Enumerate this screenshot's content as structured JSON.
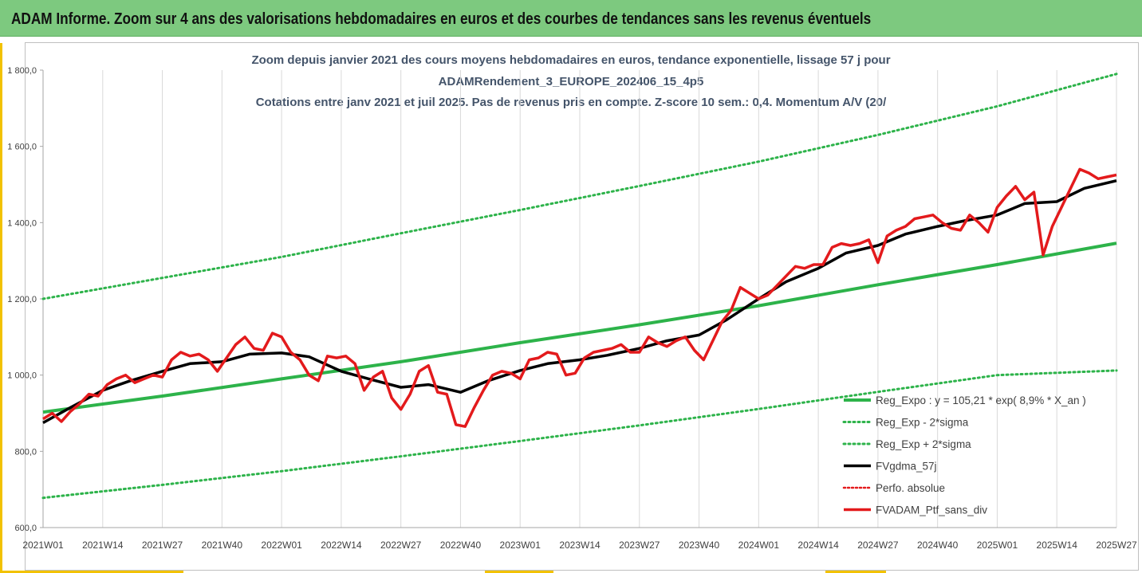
{
  "banner": {
    "title": "ADAM Informe. Zoom sur 4 ans des valorisations hebdomadaires en euros et des courbes de tendances sans les revenus éventuels"
  },
  "colors": {
    "banner_bg": "#7dc97f",
    "reg_expo": "#2db34a",
    "sigma_bands": "#2db34a",
    "moving_avg": "#000000",
    "perf_absolue": "#e31a1c",
    "portfolio": "#e31a1c"
  },
  "chart_data": {
    "type": "line",
    "title_lines": [
      "Zoom depuis janvier 2021 des cours moyens hebdomadaires  en euros, tendance exponentielle, lissage 57 j pour",
      "ADAMRendement_3_EUROPE_202406_15_4p5",
      "Cotations entre janv 2021 et juil 2025. Pas de revenus pris en compte. Z-score 10 sem.: 0,4. Momentum A/V (20/"
    ],
    "x_tick_labels": [
      "2021W01",
      "2021W14",
      "2021W27",
      "2021W40",
      "2022W01",
      "2022W14",
      "2022W27",
      "2022W40",
      "2023W01",
      "2023W14",
      "2023W27",
      "2023W40",
      "2024W01",
      "2024W14",
      "2024W27",
      "2024W40",
      "2025W01",
      "2025W14",
      "2025W27"
    ],
    "x_range": [
      "2021W01",
      "2025W27"
    ],
    "y_tick_labels": [
      "600,0",
      "800,0",
      "1 000,0",
      "1 200,0",
      "1 400,0",
      "1 600,0",
      "1 800,0"
    ],
    "ylim": [
      600,
      1800
    ],
    "grid": "vertical",
    "legend_position": "bottom-right",
    "series": [
      {
        "name": "Reg_Expo : y = 105,21 * exp( 8,9% *  X_an )",
        "style": "solid",
        "x": [
          "2021W01",
          "2021W27",
          "2022W01",
          "2022W27",
          "2023W01",
          "2023W27",
          "2024W01",
          "2024W27",
          "2025W01",
          "2025W27"
        ],
        "values": [
          903,
          945,
          990,
          1035,
          1085,
          1132,
          1182,
          1237,
          1290,
          1346
        ]
      },
      {
        "name": "Reg_Exp - 2*sigma",
        "style": "dotted",
        "x": [
          "2021W01",
          "2021W27",
          "2022W01",
          "2022W27",
          "2023W01",
          "2023W27",
          "2024W01",
          "2024W27",
          "2025W01",
          "2025W27"
        ],
        "values": [
          678,
          712,
          748,
          787,
          827,
          868,
          911,
          956,
          1000,
          1012
        ]
      },
      {
        "name": "Reg_Exp + 2*sigma",
        "style": "dotted",
        "x": [
          "2021W01",
          "2021W27",
          "2022W01",
          "2022W27",
          "2023W01",
          "2023W27",
          "2024W01",
          "2024W27",
          "2025W01",
          "2025W27"
        ],
        "values": [
          1200,
          1255,
          1310,
          1372,
          1433,
          1496,
          1560,
          1630,
          1705,
          1790
        ]
      },
      {
        "name": "FVgdma_57j",
        "style": "solid",
        "x": [
          "2021W01",
          "2021W07",
          "2021W14",
          "2021W20",
          "2021W27",
          "2021W33",
          "2021W40",
          "2021W46",
          "2022W01",
          "2022W07",
          "2022W14",
          "2022W20",
          "2022W27",
          "2022W33",
          "2022W40",
          "2022W46",
          "2023W01",
          "2023W07",
          "2023W14",
          "2023W20",
          "2023W27",
          "2023W33",
          "2023W40",
          "2023W46",
          "2024W01",
          "2024W07",
          "2024W14",
          "2024W20",
          "2024W27",
          "2024W33",
          "2024W40",
          "2024W46",
          "2025W01",
          "2025W07",
          "2025W14",
          "2025W20",
          "2025W27"
        ],
        "values": [
          875,
          915,
          960,
          985,
          1010,
          1030,
          1035,
          1055,
          1058,
          1048,
          1010,
          990,
          968,
          975,
          955,
          985,
          1012,
          1030,
          1040,
          1052,
          1070,
          1090,
          1105,
          1145,
          1200,
          1245,
          1280,
          1320,
          1340,
          1370,
          1390,
          1405,
          1420,
          1450,
          1455,
          1490,
          1510
        ]
      },
      {
        "name": "Perfo. absolue",
        "style": "dotted",
        "x": [],
        "values": []
      },
      {
        "name": "FVADAM_Ptf_sans_div",
        "style": "solid",
        "x": [
          "2021W01",
          "2021W03",
          "2021W05",
          "2021W07",
          "2021W09",
          "2021W11",
          "2021W13",
          "2021W15",
          "2021W17",
          "2021W19",
          "2021W21",
          "2021W23",
          "2021W25",
          "2021W27",
          "2021W29",
          "2021W31",
          "2021W33",
          "2021W35",
          "2021W37",
          "2021W39",
          "2021W41",
          "2021W43",
          "2021W45",
          "2021W47",
          "2021W49",
          "2021W51",
          "2022W01",
          "2022W03",
          "2022W05",
          "2022W07",
          "2022W09",
          "2022W11",
          "2022W13",
          "2022W15",
          "2022W17",
          "2022W19",
          "2022W21",
          "2022W23",
          "2022W25",
          "2022W27",
          "2022W29",
          "2022W31",
          "2022W33",
          "2022W35",
          "2022W37",
          "2022W39",
          "2022W41",
          "2022W43",
          "2022W45",
          "2022W47",
          "2022W49",
          "2022W51",
          "2023W01",
          "2023W03",
          "2023W05",
          "2023W07",
          "2023W09",
          "2023W11",
          "2023W13",
          "2023W15",
          "2023W17",
          "2023W19",
          "2023W21",
          "2023W23",
          "2023W25",
          "2023W27",
          "2023W29",
          "2023W31",
          "2023W33",
          "2023W35",
          "2023W37",
          "2023W39",
          "2023W41",
          "2023W43",
          "2023W45",
          "2023W47",
          "2023W49",
          "2023W51",
          "2024W01",
          "2024W03",
          "2024W05",
          "2024W07",
          "2024W09",
          "2024W11",
          "2024W13",
          "2024W15",
          "2024W17",
          "2024W19",
          "2024W21",
          "2024W23",
          "2024W25",
          "2024W27",
          "2024W29",
          "2024W31",
          "2024W33",
          "2024W35",
          "2024W37",
          "2024W39",
          "2024W41",
          "2024W43",
          "2024W45",
          "2024W47",
          "2024W49",
          "2024W51",
          "2025W01",
          "2025W03",
          "2025W05",
          "2025W07",
          "2025W09",
          "2025W11",
          "2025W13",
          "2025W15",
          "2025W17",
          "2025W19",
          "2025W21",
          "2025W23",
          "2025W25",
          "2025W27"
        ],
        "values": [
          885,
          900,
          878,
          905,
          925,
          950,
          945,
          975,
          990,
          1000,
          980,
          990,
          1000,
          995,
          1040,
          1060,
          1050,
          1055,
          1040,
          1010,
          1045,
          1080,
          1100,
          1070,
          1065,
          1110,
          1100,
          1060,
          1040,
          1000,
          985,
          1050,
          1045,
          1050,
          1030,
          960,
          995,
          1010,
          940,
          910,
          950,
          1010,
          1025,
          955,
          950,
          870,
          865,
          915,
          960,
          1000,
          1010,
          1005,
          990,
          1040,
          1045,
          1060,
          1055,
          1000,
          1005,
          1045,
          1060,
          1065,
          1070,
          1080,
          1060,
          1060,
          1100,
          1085,
          1075,
          1090,
          1100,
          1065,
          1040,
          1090,
          1140,
          1170,
          1230,
          1215,
          1200,
          1210,
          1235,
          1260,
          1285,
          1280,
          1290,
          1290,
          1335,
          1345,
          1340,
          1345,
          1355,
          1295,
          1365,
          1380,
          1390,
          1410,
          1415,
          1420,
          1400,
          1385,
          1380,
          1420,
          1400,
          1375,
          1440,
          1470,
          1495,
          1460,
          1480,
          1315,
          1390,
          1440,
          1490,
          1540,
          1530,
          1515,
          1520,
          1525
        ]
      }
    ]
  }
}
